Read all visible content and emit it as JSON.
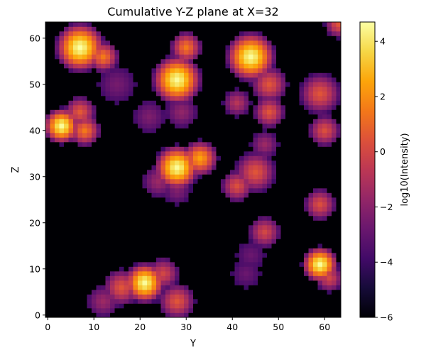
{
  "chart_data": {
    "type": "heatmap",
    "title": "Cumulative Y-Z plane at X=32",
    "xlabel": "Y",
    "ylabel": "Z",
    "xlim": [
      0,
      63
    ],
    "ylim": [
      0,
      63
    ],
    "grid_size": 64,
    "xticks": [
      0,
      10,
      20,
      30,
      40,
      50,
      60
    ],
    "yticks": [
      0,
      10,
      20,
      30,
      40,
      50,
      60
    ],
    "colorbar": {
      "label": "log10(Intensity)",
      "range": [
        -6,
        4.7
      ],
      "ticks": [
        -6,
        -4,
        -2,
        0,
        2,
        4
      ],
      "colormap": "inferno"
    },
    "background_value": -6,
    "blobs": [
      {
        "y": 7,
        "z": 58,
        "peak": 4.7,
        "radius": 5.5
      },
      {
        "y": 12,
        "z": 56,
        "peak": 1.5,
        "radius": 3.5
      },
      {
        "y": 15,
        "z": 50,
        "peak": -2.5,
        "radius": 4
      },
      {
        "y": 28,
        "z": 51,
        "peak": 4.6,
        "radius": 5.5
      },
      {
        "y": 30,
        "z": 58,
        "peak": 1.5,
        "radius": 3.5
      },
      {
        "y": 22,
        "z": 43,
        "peak": -2.3,
        "radius": 3.5
      },
      {
        "y": 29,
        "z": 44,
        "peak": -1.8,
        "radius": 3.5
      },
      {
        "y": 44,
        "z": 56,
        "peak": 4.6,
        "radius": 5.5
      },
      {
        "y": 48,
        "z": 50,
        "peak": 0.5,
        "radius": 4
      },
      {
        "y": 41,
        "z": 46,
        "peak": -0.8,
        "radius": 3
      },
      {
        "y": 48,
        "z": 44,
        "peak": 0.5,
        "radius": 3.5
      },
      {
        "y": 63,
        "z": 63,
        "peak": 0.5,
        "radius": 3
      },
      {
        "y": 59,
        "z": 48,
        "peak": 0.5,
        "radius": 4.5
      },
      {
        "y": 60,
        "z": 40,
        "peak": 0.3,
        "radius": 3.5
      },
      {
        "y": 3,
        "z": 41,
        "peak": 4.6,
        "radius": 4
      },
      {
        "y": 8,
        "z": 40,
        "peak": 1.5,
        "radius": 3.5
      },
      {
        "y": 7,
        "z": 44,
        "peak": 0.6,
        "radius": 3.5
      },
      {
        "y": 28,
        "z": 32,
        "peak": 4.6,
        "radius": 5
      },
      {
        "y": 33,
        "z": 34,
        "peak": 2.5,
        "radius": 4
      },
      {
        "y": 24,
        "z": 29,
        "peak": -1.5,
        "radius": 3.5
      },
      {
        "y": 28,
        "z": 27,
        "peak": -2.2,
        "radius": 3
      },
      {
        "y": 45,
        "z": 31,
        "peak": 0.5,
        "radius": 4.5
      },
      {
        "y": 41,
        "z": 28,
        "peak": 0.3,
        "radius": 3.5
      },
      {
        "y": 47,
        "z": 37,
        "peak": -1.5,
        "radius": 3
      },
      {
        "y": 59,
        "z": 24,
        "peak": 0.3,
        "radius": 3.5
      },
      {
        "y": 47,
        "z": 18,
        "peak": 0,
        "radius": 3.5
      },
      {
        "y": 44,
        "z": 13,
        "peak": -2.8,
        "radius": 3
      },
      {
        "y": 43,
        "z": 9,
        "peak": -2.8,
        "radius": 3
      },
      {
        "y": 59,
        "z": 11,
        "peak": 4.6,
        "radius": 4
      },
      {
        "y": 61,
        "z": 8,
        "peak": 0,
        "radius": 3
      },
      {
        "y": 21,
        "z": 7,
        "peak": 4.6,
        "radius": 4.5
      },
      {
        "y": 16,
        "z": 6,
        "peak": 0.5,
        "radius": 4
      },
      {
        "y": 12,
        "z": 3,
        "peak": -1.5,
        "radius": 3.5
      },
      {
        "y": 28,
        "z": 3,
        "peak": 0.5,
        "radius": 4
      },
      {
        "y": 25,
        "z": 9,
        "peak": 0,
        "radius": 3.5
      }
    ]
  }
}
